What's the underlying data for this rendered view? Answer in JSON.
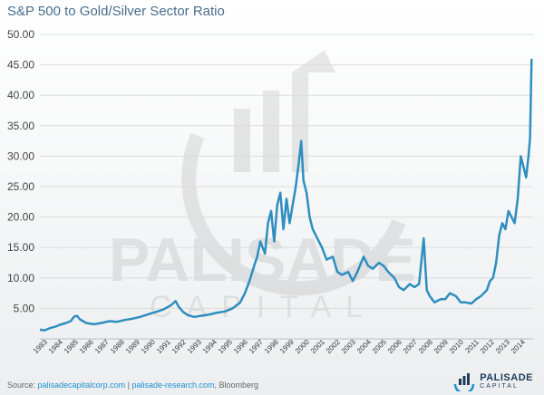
{
  "chart_data": {
    "type": "line",
    "title": "S&P 500 to Gold/Silver Sector Ratio",
    "xlabel": "",
    "ylabel": "",
    "ylim": [
      0,
      50
    ],
    "yticks": [
      "",
      "5.00",
      "10.00",
      "15.00",
      "20.00",
      "25.00",
      "30.00",
      "35.00",
      "40.00",
      "45.00",
      "50.00"
    ],
    "xticks": [
      "1983",
      "1984",
      "1985",
      "1986",
      "1987",
      "1988",
      "1989",
      "1990",
      "1991",
      "1992",
      "1993",
      "1994",
      "1995",
      "1996",
      "1997",
      "1998",
      "1999",
      "2000",
      "2001",
      "2002",
      "2003",
      "2004",
      "2005",
      "2006",
      "2007",
      "2008",
      "2009",
      "2010",
      "2011",
      "2012",
      "2013",
      "2014"
    ],
    "line_color": "#2f8ec0",
    "grid": true,
    "series": [
      {
        "name": "",
        "x": [
          1983.0,
          1983.3,
          1983.7,
          1984.0,
          1984.3,
          1984.7,
          1985.0,
          1985.2,
          1985.4,
          1985.6,
          1986.0,
          1986.5,
          1987.0,
          1987.5,
          1988.0,
          1988.5,
          1989.0,
          1989.5,
          1990.0,
          1990.5,
          1991.0,
          1991.5,
          1991.8,
          1992.0,
          1992.3,
          1992.6,
          1993.0,
          1993.5,
          1994.0,
          1994.5,
          1995.0,
          1995.5,
          1996.0,
          1996.3,
          1996.6,
          1996.9,
          1997.1,
          1997.3,
          1997.6,
          1997.8,
          1998.0,
          1998.2,
          1998.4,
          1998.6,
          1998.8,
          1999.0,
          1999.2,
          1999.4,
          1999.6,
          1999.8,
          1999.95,
          2000.1,
          2000.3,
          2000.5,
          2000.7,
          2001.0,
          2001.3,
          2001.6,
          2002.0,
          2002.3,
          2002.6,
          2003.0,
          2003.3,
          2003.6,
          2004.0,
          2004.3,
          2004.6,
          2005.0,
          2005.3,
          2005.6,
          2006.0,
          2006.3,
          2006.6,
          2007.0,
          2007.3,
          2007.6,
          2007.9,
          2008.1,
          2008.3,
          2008.6,
          2009.0,
          2009.3,
          2009.6,
          2010.0,
          2010.3,
          2010.6,
          2011.0,
          2011.3,
          2011.6,
          2012.0,
          2012.2,
          2012.4,
          2012.6,
          2012.8,
          2013.0,
          2013.2,
          2013.4,
          2013.6,
          2013.8,
          2014.0,
          2014.2,
          2014.4,
          2014.55,
          2014.7,
          2014.8,
          2014.85,
          2014.9
        ],
        "values": [
          1.5,
          1.4,
          1.8,
          2.0,
          2.3,
          2.6,
          2.9,
          3.6,
          3.8,
          3.2,
          2.6,
          2.4,
          2.6,
          2.9,
          2.8,
          3.1,
          3.3,
          3.6,
          4.0,
          4.4,
          4.8,
          5.5,
          6.2,
          5.3,
          4.4,
          3.9,
          3.6,
          3.8,
          4.0,
          4.3,
          4.5,
          5.0,
          6.0,
          7.5,
          9.5,
          12.0,
          13.5,
          16.0,
          14.0,
          19.0,
          21.0,
          16.0,
          22.0,
          24.0,
          18.0,
          23.0,
          19.0,
          22.0,
          25.0,
          29.0,
          32.5,
          26.0,
          24.0,
          20.0,
          18.0,
          16.5,
          15.0,
          13.0,
          13.5,
          11.0,
          10.5,
          11.0,
          9.5,
          11.0,
          13.5,
          12.0,
          11.5,
          12.5,
          12.0,
          11.0,
          10.0,
          8.5,
          8.0,
          9.0,
          8.5,
          9.0,
          16.5,
          8.0,
          7.0,
          6.0,
          6.5,
          6.5,
          7.5,
          7.0,
          6.0,
          6.0,
          5.8,
          6.5,
          7.0,
          8.0,
          9.5,
          10.0,
          12.5,
          17.0,
          19.0,
          18.0,
          21.0,
          20.0,
          19.0,
          23.0,
          30.0,
          28.0,
          26.5,
          30.0,
          33.0,
          39.0,
          46.0
        ]
      }
    ]
  },
  "source": {
    "prefix": "Source: ",
    "link1": "palisadecapitalcorp.com",
    "separator": " | ",
    "link2": "palisade-research.com",
    "suffix": ", Bloomberg"
  },
  "logo": {
    "name": "PALISADE",
    "sub": "CAPITAL"
  }
}
